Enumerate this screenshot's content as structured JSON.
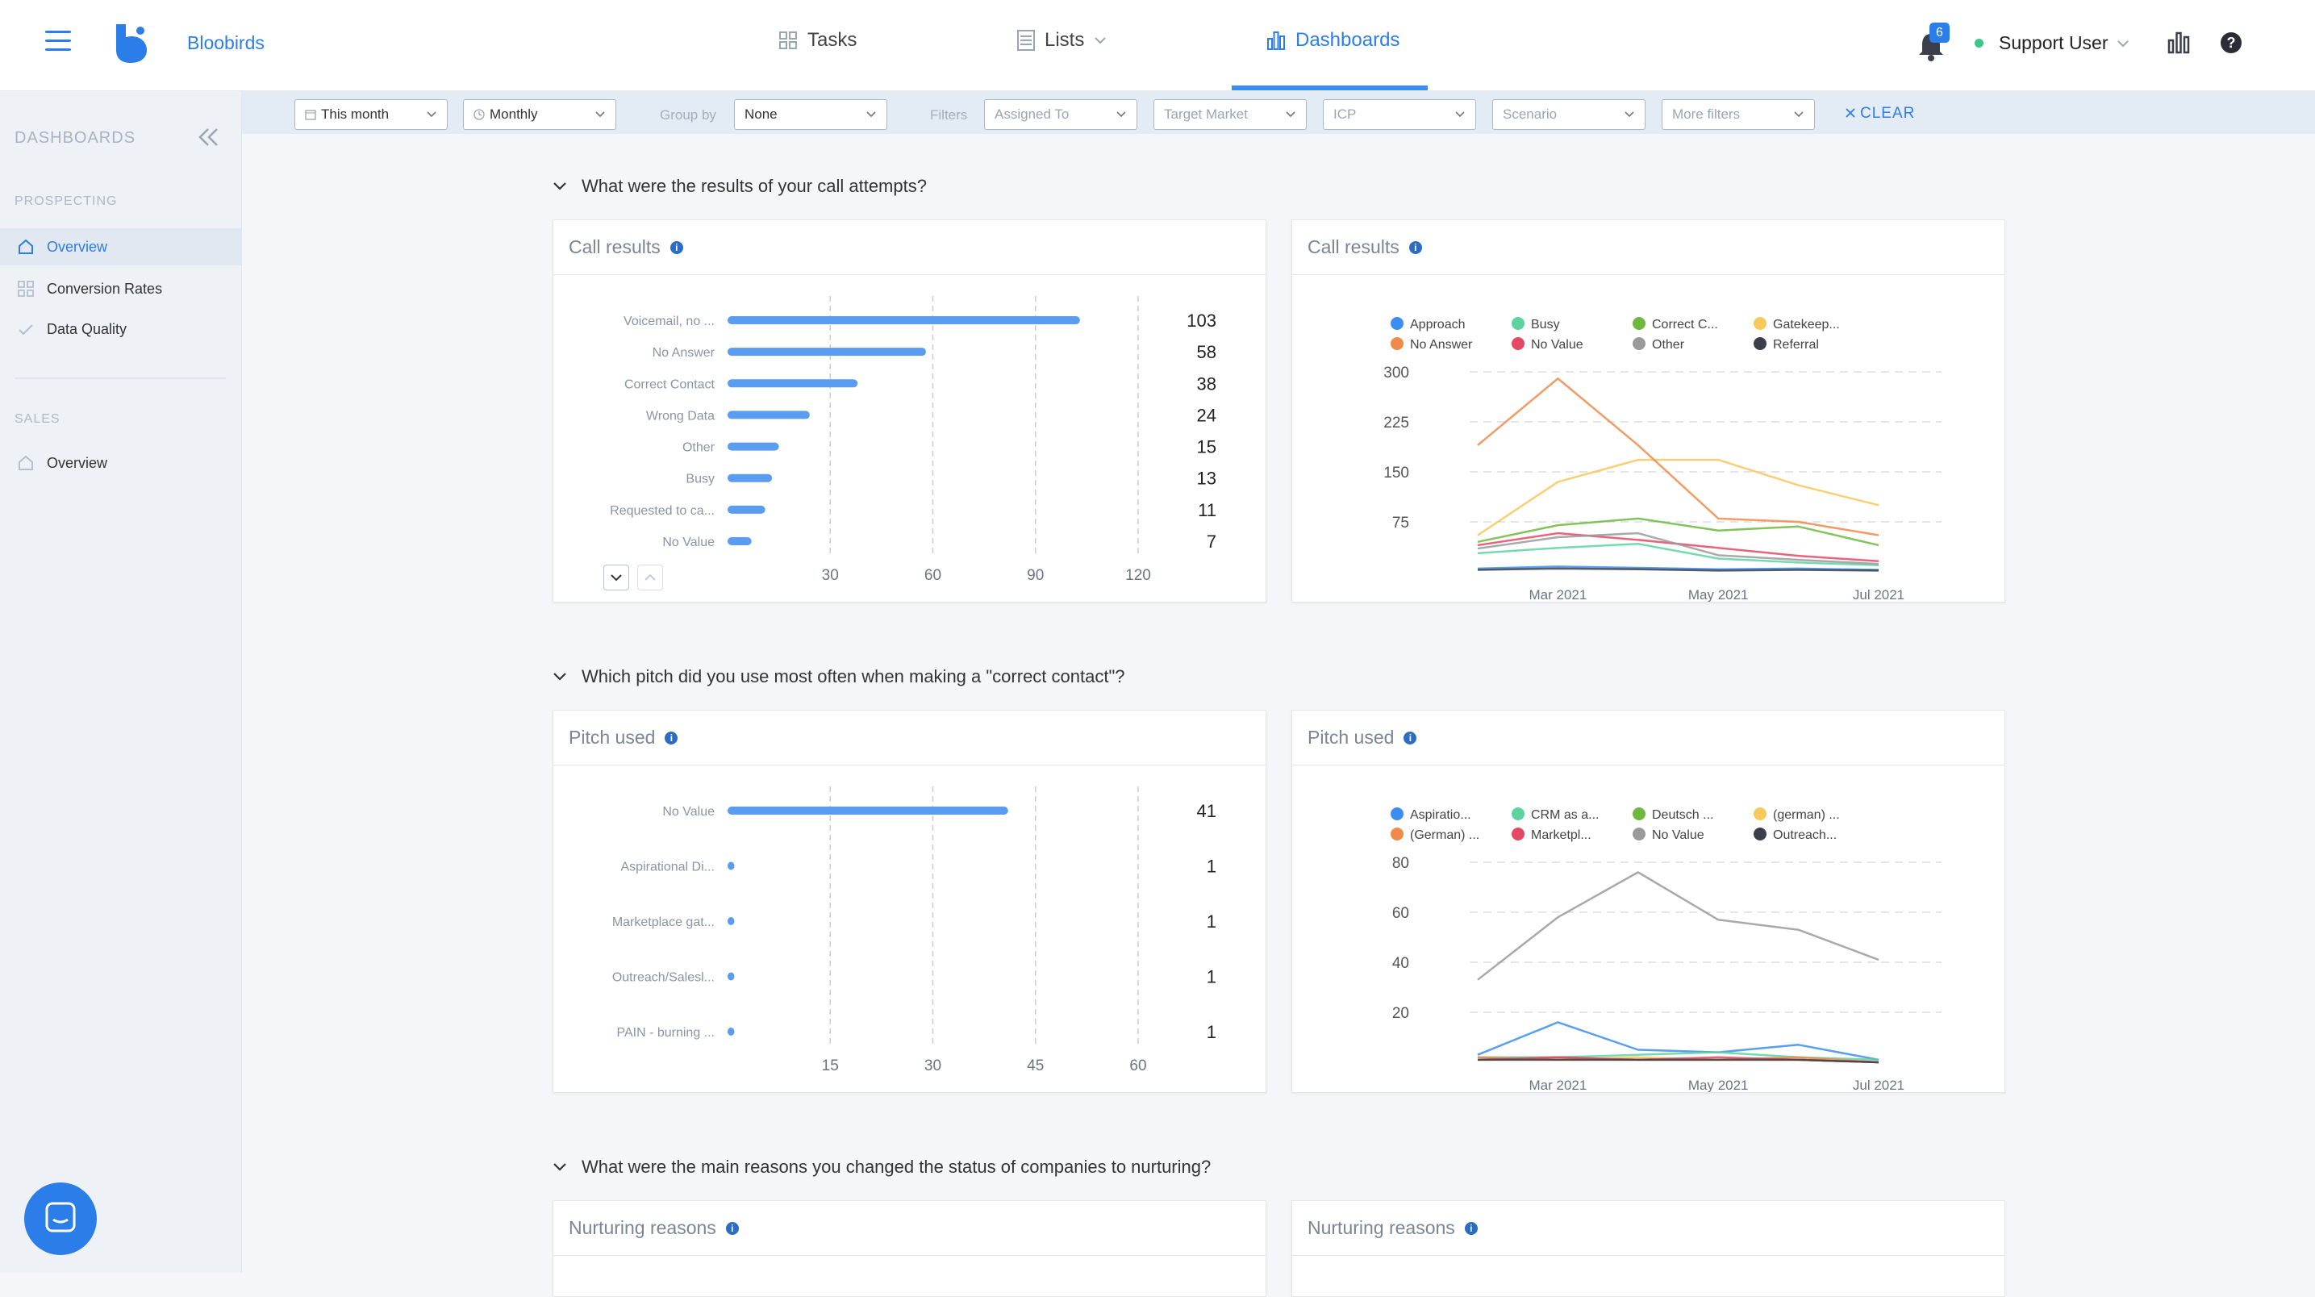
{
  "app": {
    "brand": "Bloobirds"
  },
  "topnav": {
    "tasks": "Tasks",
    "lists": "Lists",
    "dashboards": "Dashboards",
    "notifications": "6",
    "user": "Support User"
  },
  "sidebar": {
    "title": "DASHBOARDS",
    "prospecting": "PROSPECTING",
    "overview": "Overview",
    "conversion": "Conversion Rates",
    "quality": "Data Quality",
    "sales": "SALES",
    "sales_overview": "Overview"
  },
  "filters": {
    "period": "This month",
    "granularity": "Monthly",
    "group_by_label": "Group by",
    "group_by": "None",
    "filters_label": "Filters",
    "assigned": "Assigned To",
    "market": "Target Market",
    "icp": "ICP",
    "scenario": "Scenario",
    "more": "More filters",
    "clear": "CLEAR"
  },
  "questions": {
    "q1": "What were the results of your call attempts?",
    "q2": "Which pitch did you use most often when making a \"correct contact\"?",
    "q3": "What were the main reasons you changed the status of companies to nurturing?"
  },
  "cards": {
    "call_bar": "Call results",
    "call_line": "Call results",
    "pitch_bar": "Pitch used",
    "pitch_line": "Pitch used",
    "nurt_bar": "Nurturing reasons",
    "nurt_line": "Nurturing reasons"
  },
  "chart_data": [
    {
      "id": "call_bar",
      "type": "bar",
      "title": "Call results",
      "orientation": "horizontal",
      "categories": [
        "Voicemail, no ...",
        "No Answer",
        "Correct Contact",
        "Wrong Data",
        "Other",
        "Busy",
        "Requested to ca...",
        "No Value"
      ],
      "values": [
        103,
        58,
        38,
        24,
        15,
        13,
        11,
        7
      ],
      "xticks": [
        30,
        60,
        90,
        120
      ],
      "xlim": [
        0,
        120
      ],
      "color": "#5a9cf0"
    },
    {
      "id": "call_line",
      "type": "line",
      "title": "Call results",
      "x": [
        "Feb 2021",
        "Mar 2021",
        "Apr 2021",
        "May 2021",
        "Jun 2021",
        "Jul 2021"
      ],
      "xticks": [
        "Mar 2021",
        "May 2021",
        "Jul 2021"
      ],
      "yticks": [
        75,
        150,
        225,
        300
      ],
      "ylim": [
        0,
        300
      ],
      "series": [
        {
          "name": "Approach",
          "color": "#3b8ef0",
          "values": [
            5,
            8,
            6,
            4,
            5,
            3
          ]
        },
        {
          "name": "Busy",
          "color": "#5dd4a0",
          "values": [
            28,
            36,
            42,
            20,
            14,
            10
          ]
        },
        {
          "name": "Correct C...",
          "color": "#6fb83f",
          "values": [
            45,
            70,
            80,
            62,
            68,
            40
          ]
        },
        {
          "name": "Gatekeep...",
          "color": "#f7c85a",
          "values": [
            55,
            135,
            168,
            168,
            130,
            100
          ]
        },
        {
          "name": "No Answer",
          "color": "#f0894a",
          "values": [
            190,
            290,
            190,
            80,
            75,
            55
          ]
        },
        {
          "name": "No Value",
          "color": "#e54865",
          "values": [
            40,
            58,
            48,
            36,
            24,
            16
          ]
        },
        {
          "name": "Other",
          "color": "#9a9a9a",
          "values": [
            35,
            52,
            58,
            25,
            18,
            12
          ]
        },
        {
          "name": "Referral",
          "color": "#3b3f4a",
          "values": [
            3,
            5,
            4,
            2,
            3,
            2
          ]
        }
      ]
    },
    {
      "id": "pitch_bar",
      "type": "bar",
      "title": "Pitch used",
      "orientation": "horizontal",
      "categories": [
        "No Value",
        "Aspirational Di...",
        "Marketplace gat...",
        "Outreach/Salesl...",
        "PAIN - burning ..."
      ],
      "values": [
        41,
        1,
        1,
        1,
        1
      ],
      "xticks": [
        15,
        30,
        45,
        60
      ],
      "xlim": [
        0,
        60
      ],
      "color": "#5a9cf0"
    },
    {
      "id": "pitch_line",
      "type": "line",
      "title": "Pitch used",
      "x": [
        "Feb 2021",
        "Mar 2021",
        "Apr 2021",
        "May 2021",
        "Jun 2021",
        "Jul 2021"
      ],
      "xticks": [
        "Mar 2021",
        "May 2021",
        "Jul 2021"
      ],
      "yticks": [
        20,
        40,
        60,
        80
      ],
      "ylim": [
        0,
        80
      ],
      "series": [
        {
          "name": "Aspiratio...",
          "color": "#3b8ef0",
          "values": [
            3,
            16,
            5,
            4,
            7,
            1
          ]
        },
        {
          "name": "CRM as a...",
          "color": "#5dd4a0",
          "values": [
            2,
            2,
            3,
            4,
            2,
            1
          ]
        },
        {
          "name": "Deutsch ...",
          "color": "#6fb83f",
          "values": [
            1,
            2,
            1,
            1,
            1,
            0
          ]
        },
        {
          "name": "(german) ...",
          "color": "#f7c85a",
          "values": [
            1,
            1,
            2,
            1,
            1,
            0
          ]
        },
        {
          "name": "(German) ...",
          "color": "#f0894a",
          "values": [
            2,
            1,
            1,
            1,
            2,
            0
          ]
        },
        {
          "name": "Marketpl...",
          "color": "#e54865",
          "values": [
            1,
            2,
            1,
            2,
            1,
            0
          ]
        },
        {
          "name": "No Value",
          "color": "#9a9a9a",
          "values": [
            33,
            58,
            76,
            57,
            53,
            41
          ]
        },
        {
          "name": "Outreach...",
          "color": "#3b3f4a",
          "values": [
            1,
            1,
            1,
            1,
            1,
            0
          ]
        }
      ]
    }
  ]
}
